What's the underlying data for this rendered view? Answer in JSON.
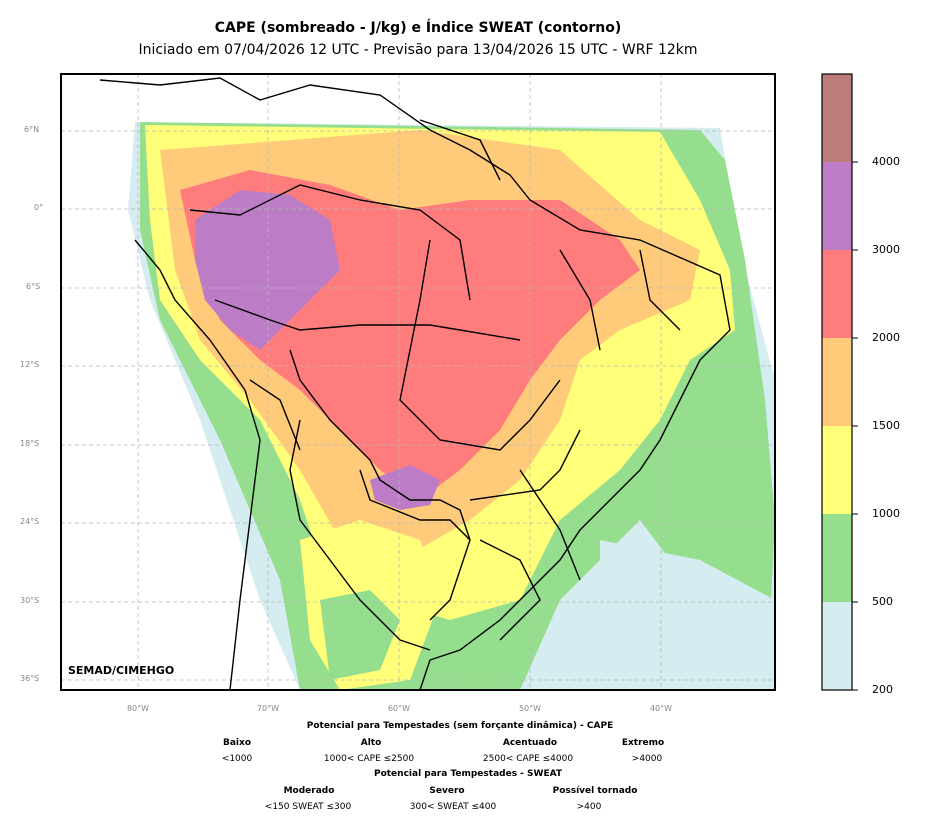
{
  "title": "CAPE (sombreado - J/kg) e Índice SWEAT (contorno)",
  "subtitle": "Iniciado em 07/04/2026 12 UTC - Previsão para 13/04/2026 15 UTC - WRF 12km",
  "watermark": "SEMAD/CIMEHGO",
  "lat_labels": [
    "6°N",
    "0°",
    "6°S",
    "12°S",
    "18°S",
    "24°S",
    "30°S",
    "36°S"
  ],
  "lon_labels": [
    "80°W",
    "70°W",
    "60°W",
    "50°W",
    "40°W"
  ],
  "colorbar": {
    "ticks": [
      "200",
      "500",
      "1000",
      "1500",
      "2000",
      "3000",
      "4000"
    ],
    "colors": [
      "#d5ecf1",
      "#94de8e",
      "#ffff7a",
      "#ffcb7a",
      "#ff7c7c",
      "#bc7cc6",
      "#bc7c7c"
    ]
  },
  "legend": {
    "cape_title": "Potencial para Tempestades (sem forçante dinâmica) - CAPE",
    "cape_cats": [
      {
        "name": "Baixo",
        "range": "<1000"
      },
      {
        "name": "Alto",
        "range": "1000< CAPE ≤2500"
      },
      {
        "name": "Acentuado",
        "range": "2500< CAPE ≤4000"
      },
      {
        "name": "Extremo",
        "range": ">4000"
      }
    ],
    "sweat_title": "Potencial para Tempestades - SWEAT",
    "sweat_cats": [
      {
        "name": "Moderado",
        "range": "<150 SWEAT ≤300"
      },
      {
        "name": "Severo",
        "range": "300< SWEAT ≤400"
      },
      {
        "name": "Possível tornado",
        "range": ">400"
      }
    ]
  }
}
